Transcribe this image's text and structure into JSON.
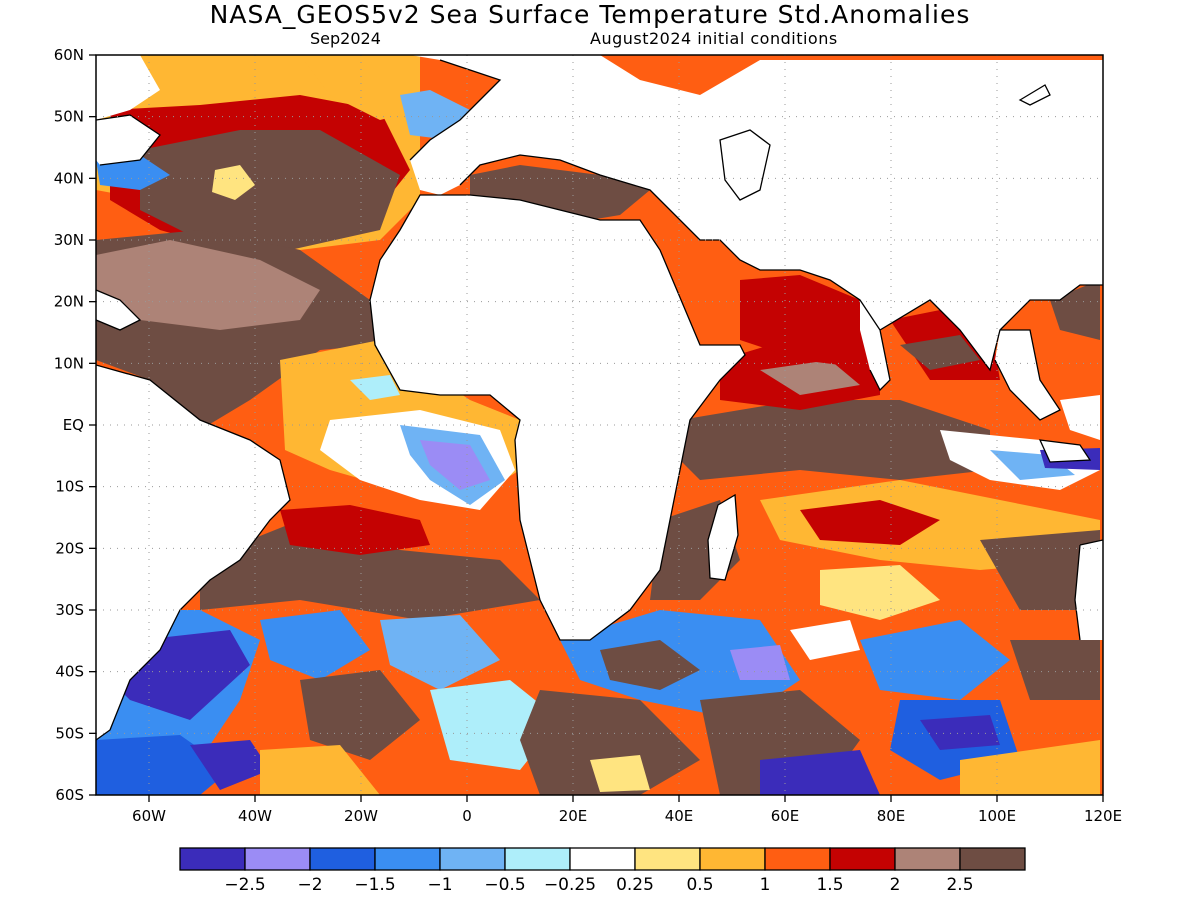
{
  "title": "NASA_GEOS5v2 Sea Surface Temperature Std.Anomalies",
  "subtitle_left": "Sep2024",
  "subtitle_right": "August2024 initial conditions",
  "map": {
    "lon_range": [
      -70,
      120
    ],
    "lat_range": [
      -60,
      60
    ],
    "lat_ticks": [
      "60N",
      "50N",
      "40N",
      "30N",
      "20N",
      "10N",
      "EQ",
      "10S",
      "20S",
      "30S",
      "40S",
      "50S",
      "60S"
    ],
    "lon_ticks": [
      "60W",
      "40W",
      "20W",
      "0",
      "20E",
      "40E",
      "60E",
      "80E",
      "100E",
      "120E"
    ],
    "lon_tick_values": [
      -60,
      -40,
      -20,
      0,
      20,
      40,
      60,
      80,
      100,
      120
    ],
    "lat_tick_values": [
      60,
      50,
      40,
      30,
      20,
      10,
      0,
      -10,
      -20,
      -30,
      -40,
      -50,
      -60
    ]
  },
  "colorbar": {
    "colors": [
      "#3b2cba",
      "#9b8cf5",
      "#1f5fe0",
      "#3a8ef2",
      "#6fb3f4",
      "#aeeefa",
      "#ffffff",
      "#ffe480",
      "#ffb733",
      "#ff5e12",
      "#c40202",
      "#ad8377",
      "#6e4d43"
    ],
    "labels": [
      "−2.5",
      "−2",
      "−1.5",
      "−1",
      "−0.5",
      "−0.25",
      "0.25",
      "0.5",
      "1",
      "1.5",
      "2",
      "2.5"
    ]
  }
}
